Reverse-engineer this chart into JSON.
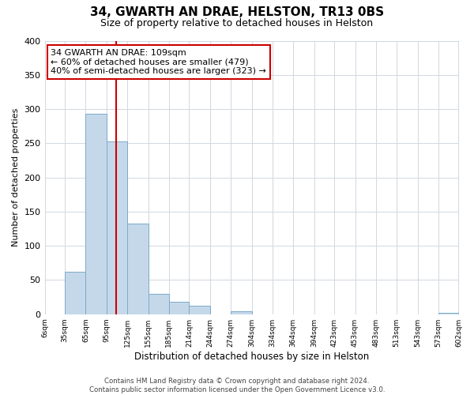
{
  "title": "34, GWARTH AN DRAE, HELSTON, TR13 0BS",
  "subtitle": "Size of property relative to detached houses in Helston",
  "xlabel": "Distribution of detached houses by size in Helston",
  "ylabel": "Number of detached properties",
  "bar_edges": [
    6,
    35,
    65,
    95,
    125,
    155,
    185,
    214,
    244,
    274,
    304,
    334,
    364,
    394,
    423,
    453,
    483,
    513,
    543,
    573,
    602
  ],
  "bar_heights": [
    0,
    62,
    293,
    253,
    132,
    30,
    18,
    12,
    0,
    4,
    0,
    0,
    0,
    0,
    0,
    0,
    0,
    0,
    0,
    2
  ],
  "bar_color": "#c5d8ea",
  "bar_edgecolor": "#7aaac8",
  "vline_x": 109,
  "vline_color": "#cc0000",
  "annotation_line1": "34 GWARTH AN DRAE: 109sqm",
  "annotation_line2": "← 60% of detached houses are smaller (479)",
  "annotation_line3": "40% of semi-detached houses are larger (323) →",
  "annotation_box_edgecolor": "#cc0000",
  "ylim": [
    0,
    400
  ],
  "yticks": [
    0,
    50,
    100,
    150,
    200,
    250,
    300,
    350,
    400
  ],
  "tick_labels": [
    "6sqm",
    "35sqm",
    "65sqm",
    "95sqm",
    "125sqm",
    "155sqm",
    "185sqm",
    "214sqm",
    "244sqm",
    "274sqm",
    "304sqm",
    "334sqm",
    "364sqm",
    "394sqm",
    "423sqm",
    "453sqm",
    "483sqm",
    "513sqm",
    "543sqm",
    "573sqm",
    "602sqm"
  ],
  "footer_text": "Contains HM Land Registry data © Crown copyright and database right 2024.\nContains public sector information licensed under the Open Government Licence v3.0.",
  "background_color": "#ffffff",
  "grid_color": "#d0d8e0"
}
